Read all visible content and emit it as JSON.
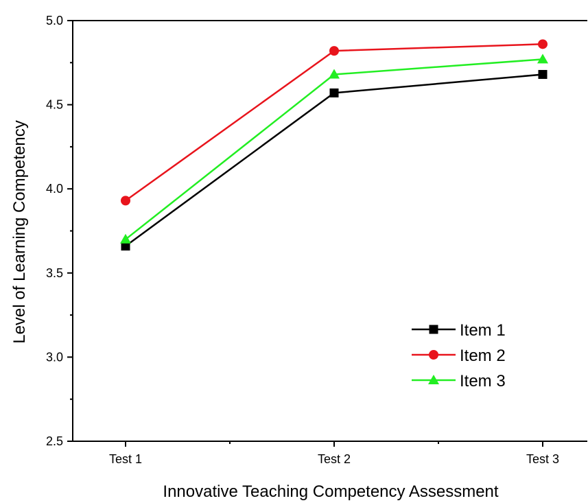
{
  "chart_data": {
    "type": "line",
    "categories": [
      "Test 1",
      "Test 2",
      "Test 3"
    ],
    "series": [
      {
        "name": "Item 1",
        "values": [
          3.66,
          4.57,
          4.68
        ],
        "color": "#000000",
        "marker": "square"
      },
      {
        "name": "Item 2",
        "values": [
          3.93,
          4.82,
          4.86
        ],
        "color": "#e8141c",
        "marker": "circle"
      },
      {
        "name": "Item 3",
        "values": [
          3.7,
          4.68,
          4.77
        ],
        "color": "#22ee22",
        "marker": "triangle"
      }
    ],
    "title": "",
    "xlabel": "Innovative Teaching Competency Assessment",
    "ylabel": "Level of Learning Competency",
    "ylim": [
      2.5,
      5.0
    ],
    "yticks": [
      "2.5",
      "3.0",
      "3.5",
      "4.0",
      "4.5",
      "5.0"
    ],
    "grid": false,
    "legend_position": "lower-right"
  }
}
